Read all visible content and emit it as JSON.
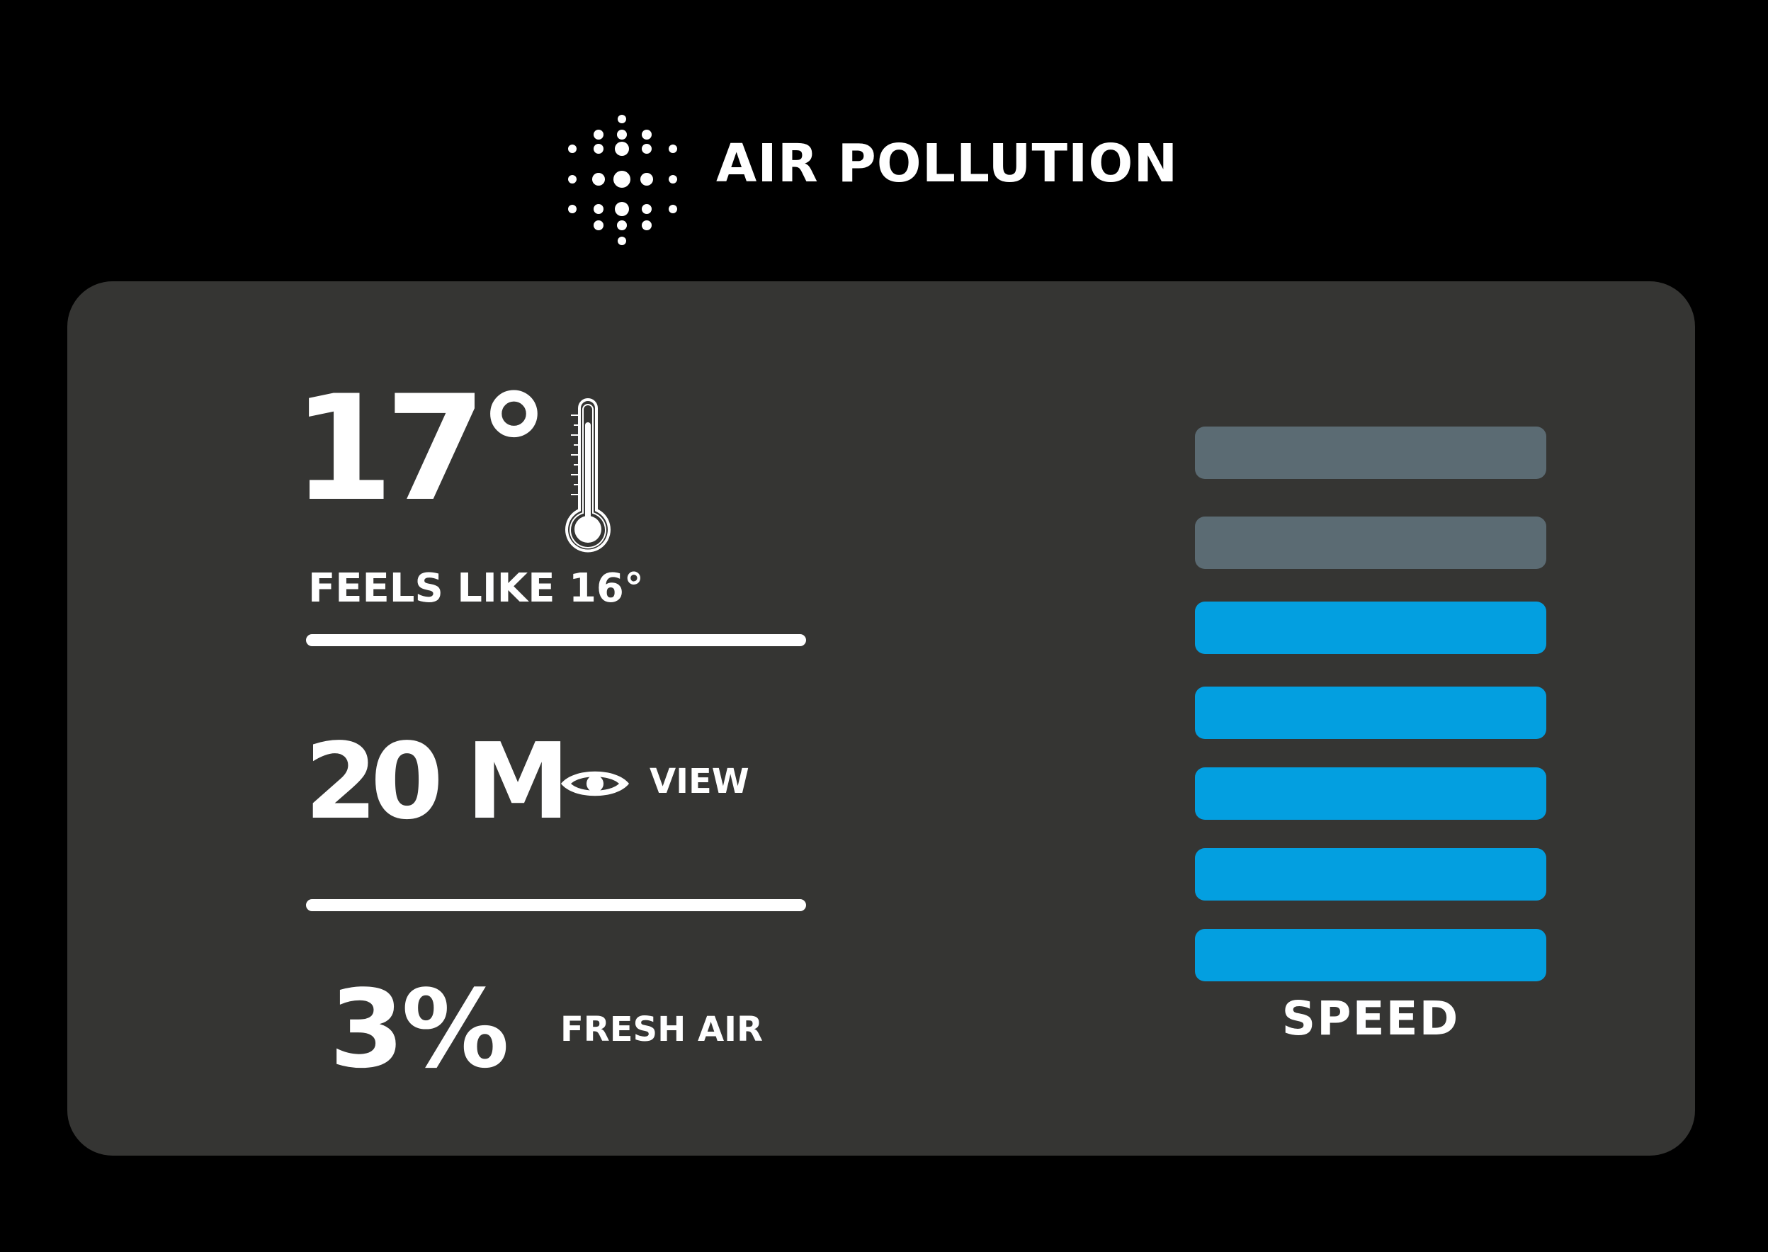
{
  "header": {
    "title": "AIR POLLUTION",
    "icon": "particles-icon"
  },
  "temperature": {
    "value": "17°",
    "feels_like": "FEELS LIKE 16°",
    "icon": "thermometer-icon"
  },
  "visibility": {
    "value": "20 M",
    "label": "VIEW",
    "icon": "eye-icon"
  },
  "fresh_air": {
    "value": "3%",
    "label": "FRESH AIR"
  },
  "speed": {
    "label": "SPEED",
    "level": 5,
    "max": 7
  },
  "colors": {
    "background": "#000000",
    "panel": "#353533",
    "text": "#ffffff",
    "bar_active": "#039fe0",
    "bar_inactive": "#5b6b73"
  }
}
